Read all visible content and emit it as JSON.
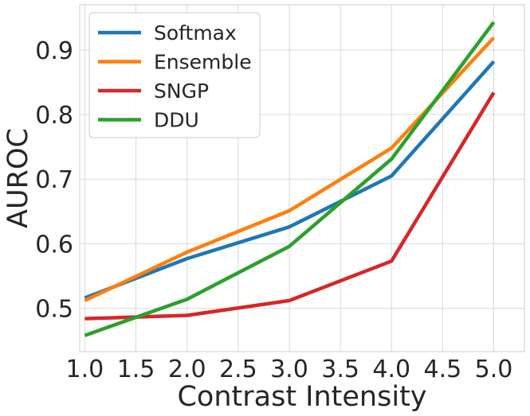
{
  "chart_data": {
    "type": "line",
    "title": "",
    "xlabel": "Contrast Intensity",
    "ylabel": "AUROC",
    "x": [
      1.0,
      2.0,
      3.0,
      4.0,
      5.0
    ],
    "xlim": [
      0.95,
      5.3
    ],
    "ylim": [
      0.433,
      0.97
    ],
    "xticks": [
      1.0,
      1.5,
      2.0,
      2.5,
      3.0,
      3.5,
      4.0,
      4.5,
      5.0
    ],
    "xtick_labels": [
      "1.0",
      "1.5",
      "2.0",
      "2.5",
      "3.0",
      "3.5",
      "4.0",
      "4.5",
      "5.0"
    ],
    "yticks": [
      0.5,
      0.6,
      0.7,
      0.8,
      0.9
    ],
    "ytick_labels": [
      "0.5",
      "0.6",
      "0.7",
      "0.8",
      "0.9"
    ],
    "grid": true,
    "legend_position": "top-left",
    "series": [
      {
        "name": "Softmax",
        "color": "#1f77b4",
        "values": [
          0.516,
          0.577,
          0.626,
          0.705,
          0.882
        ]
      },
      {
        "name": "Ensemble",
        "color": "#ff7f0e",
        "values": [
          0.512,
          0.587,
          0.651,
          0.748,
          0.919
        ]
      },
      {
        "name": "SNGP",
        "color": "#d62728",
        "values": [
          0.484,
          0.489,
          0.512,
          0.573,
          0.834
        ]
      },
      {
        "name": "DDU",
        "color": "#2ca02c",
        "values": [
          0.458,
          0.514,
          0.596,
          0.731,
          0.943
        ]
      }
    ]
  }
}
